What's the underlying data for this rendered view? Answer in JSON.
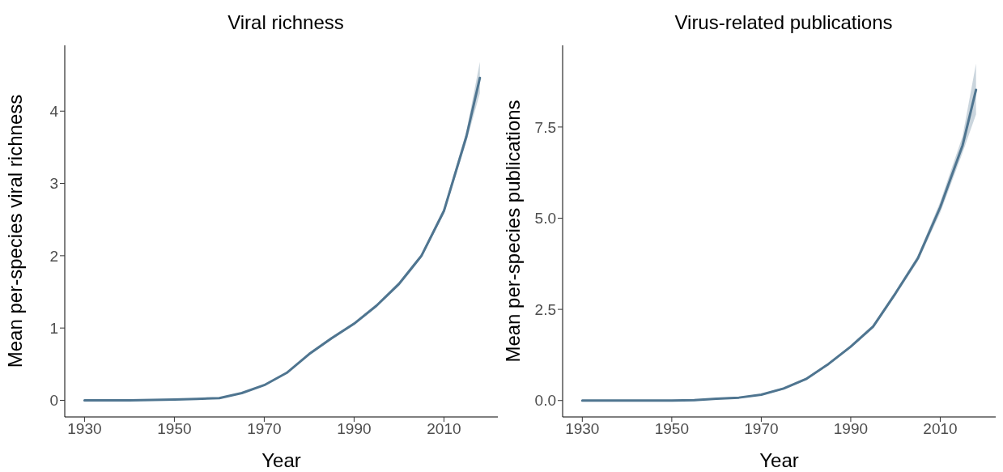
{
  "chart_data": [
    {
      "type": "line",
      "title": "Viral richness",
      "xlabel": "Year",
      "ylabel": "Mean per-species viral richness",
      "x": [
        1930,
        1940,
        1950,
        1955,
        1960,
        1965,
        1970,
        1975,
        1980,
        1985,
        1990,
        1995,
        2000,
        2005,
        2010,
        2015,
        2018
      ],
      "series": [
        {
          "color": "#4f7590",
          "values": [
            0,
            0,
            0.01,
            0.02,
            0.03,
            0.1,
            0.21,
            0.38,
            0.64,
            0.86,
            1.06,
            1.31,
            1.61,
            2.0,
            2.62,
            3.65,
            4.46
          ],
          "lower": [
            -0.01,
            -0.01,
            0,
            0.01,
            0.02,
            0.09,
            0.2,
            0.37,
            0.62,
            0.84,
            1.04,
            1.29,
            1.58,
            1.97,
            2.58,
            3.58,
            4.25
          ],
          "upper": [
            0.01,
            0.01,
            0.02,
            0.03,
            0.04,
            0.11,
            0.22,
            0.39,
            0.66,
            0.88,
            1.08,
            1.33,
            1.64,
            2.03,
            2.66,
            3.72,
            4.68
          ]
        }
      ],
      "xlim": [
        1925.6,
        2022
      ],
      "xticks": [
        1930,
        1950,
        1970,
        1990,
        2010
      ],
      "ylim": [
        -0.23,
        4.91
      ],
      "yticks": [
        0,
        1,
        2,
        3,
        4
      ],
      "grid": false
    },
    {
      "type": "line",
      "title": "Virus-related publications",
      "xlabel": "Year",
      "ylabel": "Mean per-species publications",
      "x": [
        1930,
        1940,
        1950,
        1955,
        1960,
        1965,
        1970,
        1975,
        1980,
        1985,
        1990,
        1995,
        2000,
        2005,
        2010,
        2015,
        2018
      ],
      "series": [
        {
          "color": "#4f7590",
          "values": [
            0,
            0,
            0,
            0.01,
            0.05,
            0.08,
            0.16,
            0.33,
            0.59,
            1.0,
            1.48,
            2.03,
            2.94,
            3.9,
            5.3,
            7.0,
            8.52
          ],
          "lower": [
            -0.02,
            -0.02,
            -0.02,
            -0.01,
            0.03,
            0.06,
            0.14,
            0.3,
            0.56,
            0.97,
            1.44,
            1.98,
            2.88,
            3.82,
            5.15,
            6.8,
            7.85
          ],
          "upper": [
            0.02,
            0.02,
            0.02,
            0.03,
            0.07,
            0.1,
            0.18,
            0.36,
            0.62,
            1.03,
            1.52,
            2.08,
            3.0,
            3.98,
            5.45,
            7.25,
            9.24
          ]
        }
      ],
      "xlim": [
        1925.6,
        2022.4
      ],
      "xticks": [
        1930,
        1950,
        1970,
        1990,
        2010
      ],
      "ylim": [
        -0.45,
        9.74
      ],
      "yticks": [
        {
          "value": 0,
          "label": "0.0"
        },
        2.5,
        {
          "value": 5,
          "label": "5.0"
        },
        7.5
      ],
      "grid": false
    }
  ]
}
